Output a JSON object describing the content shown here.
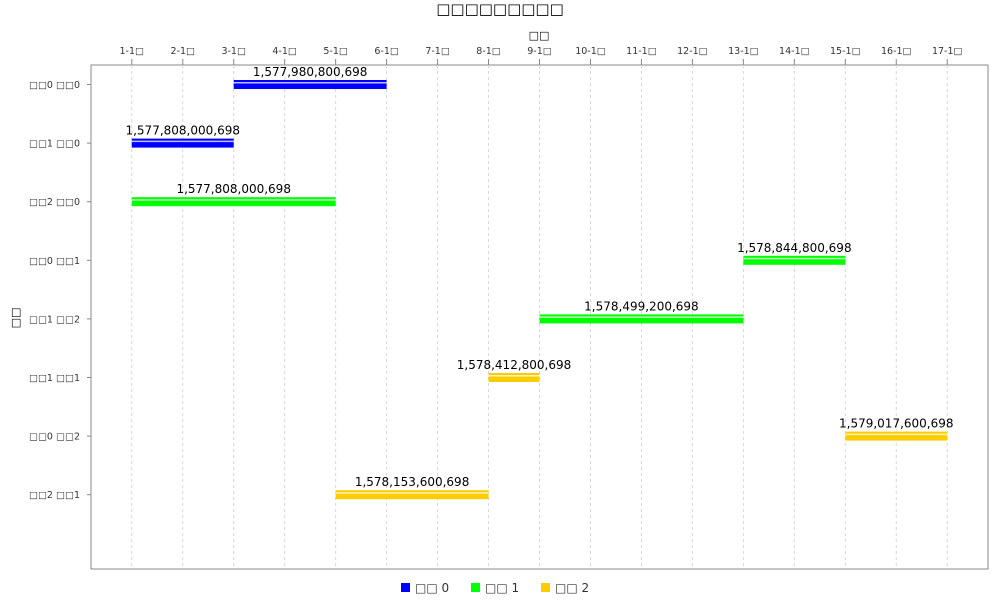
{
  "chart_data": {
    "type": "bar",
    "subtype": "gantt-horizontal-intervals",
    "title": "□□□□□□□□□",
    "xlabel": "□□",
    "ylabel": "□□",
    "x_ticks": [
      "1-1□",
      "2-1□",
      "3-1□",
      "4-1□",
      "5-1□",
      "6-1□",
      "7-1□",
      "8-1□",
      "9-1□",
      "10-1□",
      "11-1□",
      "12-1□",
      "13-1□",
      "14-1□",
      "15-1□",
      "16-1□",
      "17-1□"
    ],
    "xlim": [
      0.2,
      17.8
    ],
    "x_axis_position": "top",
    "grid": true,
    "categories": [
      "□□0 □□0",
      "□□1 □□0",
      "□□2 □□0",
      "□□0 □□1",
      "□□1 □□2",
      "□□1 □□1",
      "□□0 □□2",
      "□□2 □□1"
    ],
    "series": [
      {
        "name": "□□ 0",
        "color": "#0000ff"
      },
      {
        "name": "□□ 1",
        "color": "#00ff00"
      },
      {
        "name": "□□ 2",
        "color": "#ffcc00"
      }
    ],
    "tasks": [
      {
        "category": "□□0 □□0",
        "series": 0,
        "start": 3,
        "end": 6,
        "label": "1,577,980,800,698"
      },
      {
        "category": "□□1 □□0",
        "series": 0,
        "start": 1,
        "end": 3,
        "label": "1,577,808,000,698"
      },
      {
        "category": "□□2 □□0",
        "series": 1,
        "start": 1,
        "end": 5,
        "label": "1,577,808,000,698"
      },
      {
        "category": "□□0 □□1",
        "series": 1,
        "start": 13,
        "end": 15,
        "label": "1,578,844,800,698"
      },
      {
        "category": "□□1 □□2",
        "series": 1,
        "start": 9,
        "end": 13,
        "label": "1,578,499,200,698"
      },
      {
        "category": "□□1 □□1",
        "series": 2,
        "start": 8,
        "end": 9,
        "label": "1,578,412,800,698"
      },
      {
        "category": "□□0 □□2",
        "series": 2,
        "start": 15,
        "end": 17,
        "label": "1,579,017,600,698"
      },
      {
        "category": "□□2 □□1",
        "series": 2,
        "start": 5,
        "end": 8,
        "label": "1,578,153,600,698"
      }
    ],
    "legend_position": "bottom"
  }
}
